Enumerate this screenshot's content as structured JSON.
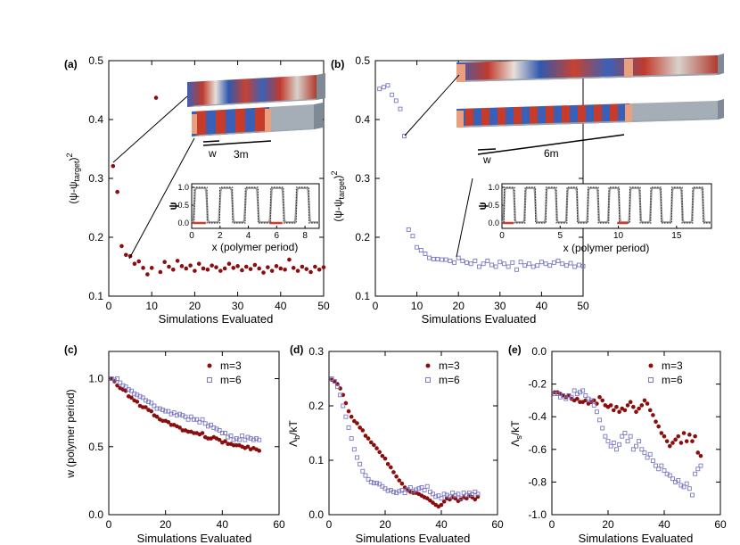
{
  "colors": {
    "series1": "#8b0d0d",
    "series2": "#7b78c4",
    "dark_line": "#111111",
    "gray_line": "#9a9a9a",
    "red_mark": "#d23a2a"
  },
  "panel_labels": [
    "(a)",
    "(b)",
    "(c)",
    "(d)",
    "(e)"
  ],
  "chart_data": [
    {
      "id": "a",
      "type": "scatter",
      "xlabel": "Simulations Evaluated",
      "ylabel": "(ψ-ψ_target)²",
      "xlim": [
        0,
        50
      ],
      "ylim": [
        0.1,
        0.5
      ],
      "xticks": [
        "0",
        "10",
        "20",
        "30",
        "40",
        "50"
      ],
      "yticks": [
        "0.1",
        "0.2",
        "0.3",
        "0.4",
        "0.5"
      ],
      "series": [
        {
          "marker": "circle",
          "color": "#8b0d0d",
          "x": [
            1,
            2,
            3,
            4,
            5,
            6,
            7,
            8,
            9,
            10,
            11,
            12,
            13,
            14,
            15,
            16,
            17,
            18,
            19,
            20,
            21,
            22,
            23,
            24,
            25,
            26,
            27,
            28,
            29,
            30,
            31,
            32,
            33,
            34,
            35,
            36,
            37,
            38,
            39,
            40,
            41,
            42,
            43,
            44,
            45,
            46,
            47,
            48,
            49,
            50
          ],
          "y": [
            0.321,
            0.277,
            0.185,
            0.17,
            0.168,
            0.155,
            0.159,
            0.148,
            0.137,
            0.148,
            0.437,
            0.141,
            0.158,
            0.15,
            0.145,
            0.16,
            0.151,
            0.147,
            0.152,
            0.143,
            0.155,
            0.147,
            0.145,
            0.152,
            0.149,
            0.143,
            0.147,
            0.155,
            0.148,
            0.151,
            0.144,
            0.15,
            0.146,
            0.153,
            0.147,
            0.14,
            0.149,
            0.143,
            0.151,
            0.147,
            0.145,
            0.162,
            0.148,
            0.143,
            0.15,
            0.146,
            0.141,
            0.15,
            0.145,
            0.149
          ]
        }
      ],
      "annotations": {
        "w": "w",
        "length": "3m"
      },
      "inset": {
        "xlabel": "x (polymer period)",
        "ylabel": "ψ",
        "xlim": [
          0,
          9
        ],
        "ylim": [
          -0.15,
          1.1
        ],
        "xticks": [
          "0",
          "2",
          "4",
          "6",
          "8"
        ],
        "yticks": [
          "0.0",
          "0.5",
          "1.0"
        ],
        "period": 1.8,
        "count": 5
      }
    },
    {
      "id": "b",
      "type": "scatter",
      "xlabel": "Simulations Evaluated",
      "ylabel": "(ψ-ψ_target)²",
      "xlim": [
        0,
        50
      ],
      "ylim": [
        0.1,
        0.5
      ],
      "xticks": [
        "0",
        "10",
        "20",
        "30",
        "40",
        "50"
      ],
      "yticks": [
        "0.1",
        "0.2",
        "0.3",
        "0.4",
        "0.5"
      ],
      "series": [
        {
          "marker": "square",
          "color": "#7b78c4",
          "x": [
            1,
            2,
            3,
            4,
            5,
            6,
            7,
            8,
            9,
            10,
            11,
            12,
            13,
            14,
            15,
            16,
            17,
            18,
            19,
            20,
            21,
            22,
            23,
            24,
            25,
            26,
            27,
            28,
            29,
            30,
            31,
            32,
            33,
            34,
            35,
            36,
            37,
            38,
            39,
            40,
            41,
            42,
            43,
            44,
            45,
            46,
            47,
            48,
            49,
            50
          ],
          "y": [
            0.452,
            0.455,
            0.458,
            0.442,
            0.432,
            0.418,
            0.372,
            0.213,
            0.202,
            0.183,
            0.178,
            0.172,
            0.165,
            0.163,
            0.163,
            0.162,
            0.162,
            0.16,
            0.157,
            0.165,
            0.16,
            0.157,
            0.155,
            0.16,
            0.15,
            0.155,
            0.16,
            0.153,
            0.15,
            0.158,
            0.155,
            0.15,
            0.157,
            0.145,
            0.158,
            0.152,
            0.155,
            0.15,
            0.152,
            0.158,
            0.155,
            0.152,
            0.157,
            0.16,
            0.155,
            0.152,
            0.156,
            0.15,
            0.153,
            0.151
          ]
        }
      ],
      "annotations": {
        "w": "w",
        "length": "6m"
      },
      "inset": {
        "xlabel": "x (polymer period)",
        "ylabel": "ψ",
        "xlim": [
          0,
          18
        ],
        "ylim": [
          -0.15,
          1.1
        ],
        "xticks": [
          "0",
          "5",
          "10",
          "15"
        ],
        "yticks": [
          "0.0",
          "0.5",
          "1.0"
        ],
        "period": 1.8,
        "count": 10
      }
    },
    {
      "id": "c",
      "type": "scatter",
      "xlabel": "Simulations Evaluated",
      "ylabel": "w (polymer period)",
      "xlim": [
        0,
        60
      ],
      "ylim": [
        0.0,
        1.2
      ],
      "xticks": [
        "0",
        "20",
        "40",
        "60"
      ],
      "yticks": [
        "0.0",
        "0.5",
        "1.0"
      ],
      "legend": "top-right",
      "series": [
        {
          "name": "m=3",
          "marker": "circle",
          "color": "#8b0d0d",
          "x": [
            1,
            2,
            3,
            4,
            5,
            6,
            7,
            8,
            9,
            10,
            11,
            12,
            13,
            14,
            15,
            16,
            17,
            18,
            19,
            20,
            21,
            22,
            23,
            24,
            25,
            26,
            27,
            28,
            29,
            30,
            31,
            32,
            33,
            34,
            35,
            36,
            37,
            38,
            39,
            40,
            41,
            42,
            43,
            44,
            45,
            46,
            47,
            48,
            49,
            50,
            51,
            52,
            53
          ],
          "y": [
            1.0,
            0.98,
            0.95,
            0.93,
            0.92,
            0.91,
            0.87,
            0.86,
            0.84,
            0.83,
            0.8,
            0.79,
            0.79,
            0.77,
            0.76,
            0.73,
            0.72,
            0.7,
            0.69,
            0.69,
            0.68,
            0.66,
            0.66,
            0.65,
            0.64,
            0.62,
            0.62,
            0.61,
            0.61,
            0.6,
            0.6,
            0.59,
            0.6,
            0.57,
            0.56,
            0.56,
            0.57,
            0.56,
            0.55,
            0.53,
            0.54,
            0.52,
            0.52,
            0.51,
            0.51,
            0.51,
            0.5,
            0.49,
            0.5,
            0.48,
            0.49,
            0.48,
            0.47
          ]
        },
        {
          "name": "m=6",
          "marker": "square",
          "color": "#7b78c4",
          "x": [
            1,
            2,
            3,
            4,
            5,
            6,
            7,
            8,
            9,
            10,
            11,
            12,
            13,
            14,
            15,
            16,
            17,
            18,
            19,
            20,
            21,
            22,
            23,
            24,
            25,
            26,
            27,
            28,
            29,
            30,
            31,
            32,
            33,
            34,
            35,
            36,
            37,
            38,
            39,
            40,
            41,
            42,
            43,
            44,
            45,
            46,
            47,
            48,
            49,
            50,
            51,
            52,
            53
          ],
          "y": [
            1.0,
            0.99,
            1.0,
            0.97,
            0.95,
            0.94,
            0.92,
            0.91,
            0.89,
            0.88,
            0.87,
            0.86,
            0.84,
            0.83,
            0.82,
            0.8,
            0.78,
            0.78,
            0.77,
            0.76,
            0.76,
            0.74,
            0.75,
            0.73,
            0.74,
            0.73,
            0.72,
            0.7,
            0.72,
            0.7,
            0.7,
            0.68,
            0.7,
            0.67,
            0.65,
            0.66,
            0.64,
            0.63,
            0.62,
            0.6,
            0.6,
            0.57,
            0.58,
            0.55,
            0.56,
            0.55,
            0.58,
            0.55,
            0.57,
            0.56,
            0.55,
            0.56,
            0.55
          ]
        }
      ]
    },
    {
      "id": "d",
      "type": "scatter",
      "xlabel": "Simulations Evaluated",
      "ylabel": "Λ_b/kT",
      "xlim": [
        0,
        60
      ],
      "ylim": [
        0.0,
        0.3
      ],
      "xticks": [
        "0",
        "20",
        "40",
        "60"
      ],
      "yticks": [
        "0.0",
        "0.1",
        "0.2",
        "0.3"
      ],
      "legend": "top-right",
      "series": [
        {
          "name": "m=3",
          "marker": "circle",
          "color": "#8b0d0d",
          "x": [
            1,
            2,
            3,
            4,
            5,
            6,
            7,
            8,
            9,
            10,
            11,
            12,
            13,
            14,
            15,
            16,
            17,
            18,
            19,
            20,
            21,
            22,
            23,
            24,
            25,
            26,
            27,
            28,
            29,
            30,
            31,
            32,
            33,
            34,
            35,
            36,
            37,
            38,
            39,
            40,
            41,
            42,
            43,
            44,
            45,
            46,
            47,
            48,
            49,
            50,
            51,
            52,
            53
          ],
          "y": [
            0.248,
            0.245,
            0.24,
            0.232,
            0.22,
            0.205,
            0.19,
            0.18,
            0.172,
            0.168,
            0.16,
            0.155,
            0.145,
            0.14,
            0.133,
            0.128,
            0.122,
            0.115,
            0.108,
            0.103,
            0.093,
            0.087,
            0.078,
            0.07,
            0.063,
            0.057,
            0.05,
            0.045,
            0.042,
            0.04,
            0.04,
            0.038,
            0.035,
            0.032,
            0.03,
            0.026,
            0.022,
            0.018,
            0.015,
            0.018,
            0.024,
            0.03,
            0.028,
            0.032,
            0.03,
            0.025,
            0.028,
            0.032,
            0.03,
            0.035,
            0.032,
            0.028,
            0.033
          ]
        },
        {
          "name": "m=6",
          "marker": "square",
          "color": "#7b78c4",
          "x": [
            1,
            2,
            3,
            4,
            5,
            6,
            7,
            8,
            9,
            10,
            11,
            12,
            13,
            14,
            15,
            16,
            17,
            18,
            19,
            20,
            21,
            22,
            23,
            24,
            25,
            26,
            27,
            28,
            29,
            30,
            31,
            32,
            33,
            34,
            35,
            36,
            37,
            38,
            39,
            40,
            41,
            42,
            43,
            44,
            45,
            46,
            47,
            48,
            49,
            50,
            51,
            52,
            53
          ],
          "y": [
            0.25,
            0.245,
            0.235,
            0.22,
            0.2,
            0.18,
            0.16,
            0.14,
            0.12,
            0.105,
            0.093,
            0.08,
            0.072,
            0.065,
            0.06,
            0.058,
            0.058,
            0.056,
            0.052,
            0.048,
            0.044,
            0.045,
            0.042,
            0.04,
            0.043,
            0.045,
            0.04,
            0.047,
            0.05,
            0.043,
            0.046,
            0.048,
            0.05,
            0.045,
            0.052,
            0.042,
            0.038,
            0.033,
            0.035,
            0.03,
            0.038,
            0.036,
            0.033,
            0.04,
            0.035,
            0.038,
            0.03,
            0.04,
            0.036,
            0.04,
            0.037,
            0.042,
            0.038
          ]
        }
      ]
    },
    {
      "id": "e",
      "type": "scatter",
      "xlabel": "Simulations Evaluated",
      "ylabel": "Λ_s/kT",
      "xlim": [
        0,
        60
      ],
      "ylim": [
        -1.0,
        0.0
      ],
      "xticks": [
        "0",
        "20",
        "40",
        "60"
      ],
      "yticks": [
        "-1.0",
        "-0.8",
        "-0.6",
        "-0.4",
        "-0.2",
        "0.0"
      ],
      "legend": "top-right",
      "series": [
        {
          "name": "m=3",
          "marker": "circle",
          "color": "#8b0d0d",
          "x": [
            1,
            2,
            3,
            4,
            5,
            6,
            7,
            8,
            9,
            10,
            11,
            12,
            13,
            14,
            15,
            16,
            17,
            18,
            19,
            20,
            21,
            22,
            23,
            24,
            25,
            26,
            27,
            28,
            29,
            30,
            31,
            32,
            33,
            34,
            35,
            36,
            37,
            38,
            39,
            40,
            41,
            42,
            43,
            44,
            45,
            46,
            47,
            48,
            49,
            50,
            51,
            52,
            53
          ],
          "y": [
            -0.25,
            -0.25,
            -0.26,
            -0.27,
            -0.28,
            -0.27,
            -0.29,
            -0.3,
            -0.29,
            -0.31,
            -0.31,
            -0.3,
            -0.32,
            -0.31,
            -0.3,
            -0.32,
            -0.28,
            -0.3,
            -0.33,
            -0.34,
            -0.33,
            -0.36,
            -0.34,
            -0.37,
            -0.35,
            -0.36,
            -0.33,
            -0.31,
            -0.34,
            -0.37,
            -0.35,
            -0.33,
            -0.3,
            -0.32,
            -0.36,
            -0.39,
            -0.43,
            -0.46,
            -0.5,
            -0.52,
            -0.55,
            -0.58,
            -0.56,
            -0.54,
            -0.52,
            -0.56,
            -0.5,
            -0.55,
            -0.51,
            -0.55,
            -0.52,
            -0.62,
            -0.64
          ]
        },
        {
          "name": "m=6",
          "marker": "square",
          "color": "#7b78c4",
          "x": [
            1,
            2,
            3,
            4,
            5,
            6,
            7,
            8,
            9,
            10,
            11,
            12,
            13,
            14,
            15,
            16,
            17,
            18,
            19,
            20,
            21,
            22,
            23,
            24,
            25,
            26,
            27,
            28,
            29,
            30,
            31,
            32,
            33,
            34,
            35,
            36,
            37,
            38,
            39,
            40,
            41,
            42,
            43,
            44,
            45,
            46,
            47,
            48,
            49,
            50,
            51,
            52,
            53
          ],
          "y": [
            -0.26,
            -0.26,
            -0.28,
            -0.27,
            -0.29,
            -0.27,
            -0.28,
            -0.24,
            -0.26,
            -0.25,
            -0.24,
            -0.27,
            -0.29,
            -0.3,
            -0.33,
            -0.37,
            -0.42,
            -0.47,
            -0.52,
            -0.55,
            -0.58,
            -0.56,
            -0.6,
            -0.57,
            -0.52,
            -0.5,
            -0.55,
            -0.52,
            -0.6,
            -0.58,
            -0.55,
            -0.6,
            -0.62,
            -0.65,
            -0.63,
            -0.67,
            -0.7,
            -0.72,
            -0.7,
            -0.73,
            -0.75,
            -0.76,
            -0.78,
            -0.8,
            -0.79,
            -0.82,
            -0.83,
            -0.81,
            -0.84,
            -0.88,
            -0.75,
            -0.72,
            -0.7
          ]
        }
      ]
    }
  ]
}
